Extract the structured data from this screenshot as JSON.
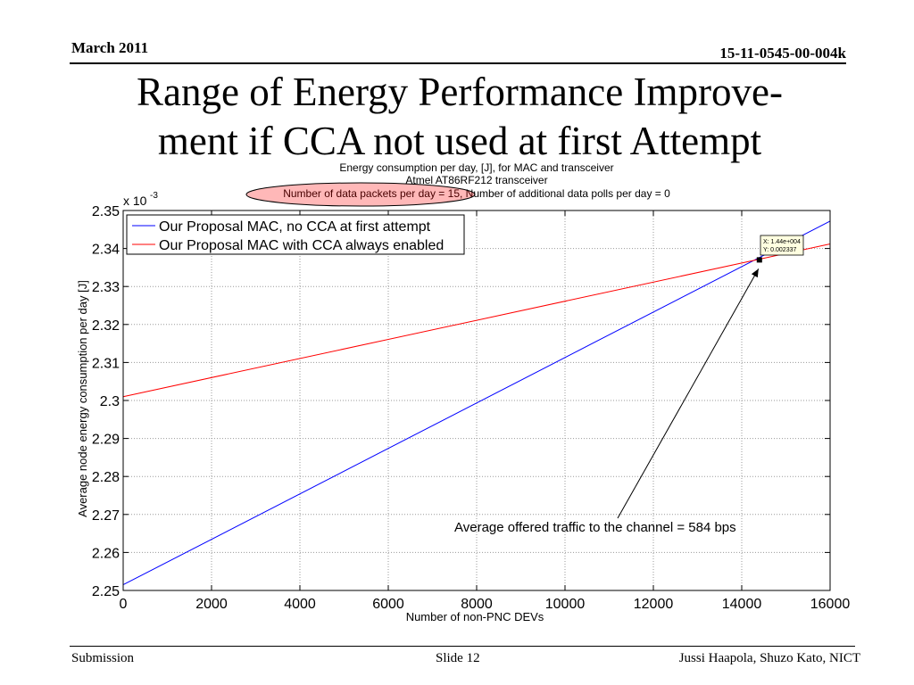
{
  "header": {
    "date": "March 2011",
    "doc_number": "15-11-0545-00-004k"
  },
  "slide": {
    "title_line1": "Range of Energy Performance Improve-",
    "title_line2": "ment if CCA not used at first Attempt"
  },
  "footer": {
    "left": "Submission",
    "center": "Slide 12",
    "right": "Jussi Haapola, Shuzo Kato, NICT"
  },
  "chart_data": {
    "type": "line",
    "title": [
      "Energy consumption per day, [J], for MAC and transceiver",
      "Atmel AT86RF212 transceiver",
      "Number of data packets per day = 15, Number of additional data polls per day = 0"
    ],
    "xlabel": "Number of non-PNC DEVs",
    "ylabel": "Average node energy consumption per day [J]",
    "y_multiplier": "x 10",
    "y_multiplier_exp": "-3",
    "xlim": [
      0,
      16000
    ],
    "ylim": [
      2.25,
      2.35
    ],
    "grid": true,
    "legend_position": "top-left",
    "x_ticks": [
      0,
      2000,
      4000,
      6000,
      8000,
      10000,
      12000,
      14000,
      16000
    ],
    "x_tick_labels": [
      "0",
      "2000",
      "4000",
      "6000",
      "8000",
      "10000",
      "12000",
      "14000",
      "16000"
    ],
    "y_ticks": [
      2.25,
      2.26,
      2.27,
      2.28,
      2.29,
      2.3,
      2.31,
      2.32,
      2.33,
      2.34,
      2.35
    ],
    "y_tick_labels": [
      "2.25",
      "2.26",
      "2.27",
      "2.28",
      "2.29",
      "2.3",
      "2.31",
      "2.32",
      "2.33",
      "2.34",
      "2.35"
    ],
    "series": [
      {
        "name": "Our Proposal MAC, no CCA at first attempt",
        "color": "#0000ff",
        "x": [
          0,
          16000
        ],
        "y": [
          2.2515,
          2.3472
        ]
      },
      {
        "name": "Our Proposal MAC with CCA always enabled",
        "color": "#ff0000",
        "x": [
          0,
          16000
        ],
        "y": [
          2.301,
          2.3412
        ]
      }
    ],
    "datatip": {
      "x": 14400,
      "y": 2.337,
      "text_x": "X: 1.44e+004",
      "text_y": "Y: 0.002337"
    },
    "annotation": {
      "text": "Average offered traffic to the channel = 584 bps",
      "x": 11100,
      "y": 2.2685
    },
    "highlight_color": "#ff0000"
  }
}
